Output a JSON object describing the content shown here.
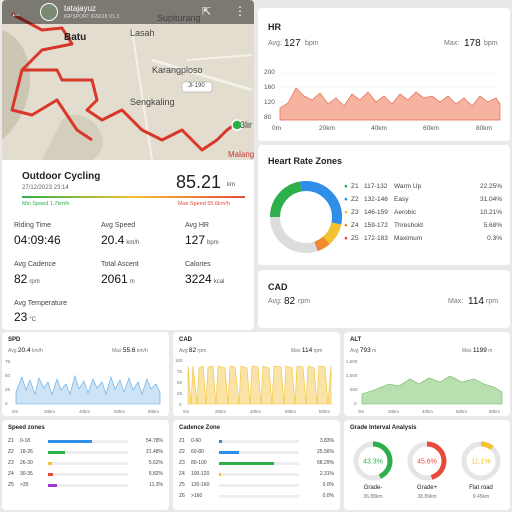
{
  "map": {
    "username": "tatajayuz",
    "device": "iGPSPORT iGS618 V1.3",
    "places": [
      "Lasah",
      "Supiturang",
      "Batu",
      "Karangploso",
      "Sengkaling",
      "JI-190",
      "3lir",
      "Malang"
    ]
  },
  "activity": {
    "type": "Outdoor Cycling",
    "date": "27/12/2023 23:14",
    "distance": "85.21",
    "distance_unit": "km",
    "min_speed": "Min Speed 1.7km/h",
    "max_speed": "Max Speed 55.6km/h",
    "stats": [
      {
        "label": "Riding Time",
        "value": "04:09:46",
        "unit": ""
      },
      {
        "label": "Avg Speed",
        "value": "20.4",
        "unit": "km/h"
      },
      {
        "label": "Avg HR",
        "value": "127",
        "unit": "bpm"
      },
      {
        "label": "Avg Cadence",
        "value": "82",
        "unit": "rpm"
      },
      {
        "label": "Total Ascent",
        "value": "2061",
        "unit": "m"
      },
      {
        "label": "Calories",
        "value": "3224",
        "unit": "kcal"
      },
      {
        "label": "Avg Temperature",
        "value": "23",
        "unit": "°C"
      }
    ]
  },
  "hr": {
    "title": "HR",
    "avg_label": "Avg:",
    "avg_value": "127",
    "avg_unit": "bpm",
    "max_label": "Max:",
    "max_value": "178",
    "max_unit": "bpm",
    "y_ticks": [
      "200",
      "160",
      "120",
      "80"
    ],
    "x_ticks": [
      "0m",
      "20km",
      "40km",
      "60km",
      "80km"
    ]
  },
  "zones": {
    "title": "Heart Rate Zones",
    "items": [
      {
        "zone": "Z1",
        "range": "117-132",
        "name": "Warm Up",
        "pct": "22.25%",
        "value": 22.25,
        "color": "#2db04b"
      },
      {
        "zone": "Z2",
        "range": "132-146",
        "name": "Easy",
        "pct": "31.04%",
        "value": 31.04,
        "color": "#2f8ee8"
      },
      {
        "zone": "Z3",
        "range": "146-159",
        "name": "Aerobic",
        "pct": "10.21%",
        "value": 10.21,
        "color": "#f2c230"
      },
      {
        "zone": "Z4",
        "range": "159-172",
        "name": "Threshold",
        "pct": "5.68%",
        "value": 5.68,
        "color": "#f08a2c"
      },
      {
        "zone": "Z5",
        "range": "172-183",
        "name": "Maximum",
        "pct": "0.3%",
        "value": 0.3,
        "color": "#e84a3a"
      }
    ]
  },
  "cad": {
    "title": "CAD",
    "avg_label": "Avg:",
    "avg_value": "82",
    "avg_unit": "rpm",
    "max_label": "Max:",
    "max_value": "114",
    "max_unit": "rpm"
  },
  "spd": {
    "title": "SPD",
    "avg": "20.4",
    "avg_unit": "km/h",
    "max": "55.6",
    "max_unit": "km/h",
    "y_ticks": [
      "75",
      "50",
      "25",
      "0"
    ],
    "x_ticks": [
      "0m",
      "20km",
      "40km",
      "60km",
      "80km"
    ]
  },
  "cad_chart": {
    "title": "CAD",
    "avg": "82",
    "avg_unit": "rpm",
    "max": "114",
    "max_unit": "rpm",
    "y_ticks": [
      "100",
      "75",
      "50",
      "25",
      "0"
    ],
    "x_ticks": [
      "0m",
      "20km",
      "40km",
      "60km",
      "80km"
    ]
  },
  "alt": {
    "title": "ALT",
    "avg": "793",
    "avg_unit": "m",
    "max": "1199",
    "max_unit": "m",
    "y_ticks": [
      "1,500",
      "1,000",
      "500",
      "0"
    ],
    "x_ticks": [
      "0m",
      "20km",
      "40km",
      "60km",
      "80km"
    ]
  },
  "speed_zones": {
    "title": "Speed zones",
    "items": [
      {
        "zone": "Z1",
        "range": "0-18",
        "pct": "54.78%",
        "value": 54.78,
        "color": "#2f8ee8"
      },
      {
        "zone": "Z2",
        "range": "18-26",
        "pct": "21.48%",
        "value": 21.48,
        "color": "#2db04b"
      },
      {
        "zone": "Z3",
        "range": "26-30",
        "pct": "5.62%",
        "value": 5.62,
        "color": "#f2c230"
      },
      {
        "zone": "Z4",
        "range": "30-35",
        "pct": "6.82%",
        "value": 6.82,
        "color": "#e84a3a"
      },
      {
        "zone": "Z5",
        "range": ">35",
        "pct": "11.3%",
        "value": 11.3,
        "color": "#9b3ad0"
      }
    ]
  },
  "cadence_zones": {
    "title": "Cadence Zone",
    "items": [
      {
        "zone": "Z1",
        "range": "0-60",
        "pct": "3.83%",
        "value": 3.83,
        "color": "#2f8ee8"
      },
      {
        "zone": "Z2",
        "range": "60-80",
        "pct": "25.56%",
        "value": 25.56,
        "color": "#2f8ee8"
      },
      {
        "zone": "Z3",
        "range": "80-100",
        "pct": "68.29%",
        "value": 68.29,
        "color": "#2db04b"
      },
      {
        "zone": "Z4",
        "range": "100-120",
        "pct": "2.31%",
        "value": 2.31,
        "color": "#f2c230"
      },
      {
        "zone": "Z5",
        "range": "120-160",
        "pct": "0.0%",
        "value": 0,
        "color": "#f08a2c"
      },
      {
        "zone": "Z6",
        "range": ">160",
        "pct": "0.0%",
        "value": 0,
        "color": "#e84a3a"
      }
    ]
  },
  "grade": {
    "title": "Grade Interval Analysis",
    "items": [
      {
        "pct": "43.3%",
        "value": 43.3,
        "label": "Grade-",
        "dist": "36.88km",
        "color": "#2db04b"
      },
      {
        "pct": "45.6%",
        "value": 45.6,
        "label": "Grade+",
        "dist": "38.89km",
        "color": "#e84a3a"
      },
      {
        "pct": "11.1%",
        "value": 11.1,
        "label": "Flat road",
        "dist": "9.45km",
        "color": "#f2c230"
      }
    ]
  }
}
